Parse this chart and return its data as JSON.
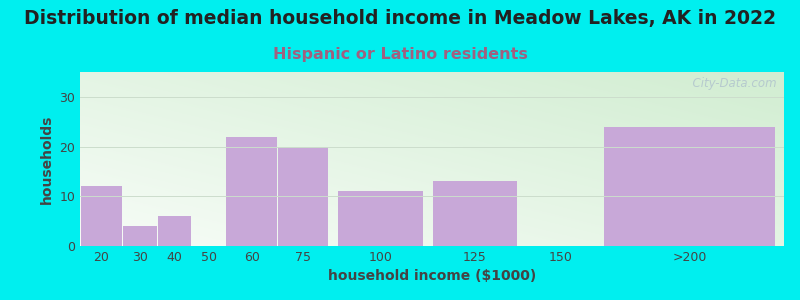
{
  "title": "Distribution of median household income in Meadow Lakes, AK in 2022",
  "subtitle": "Hispanic or Latino residents",
  "xlabel": "household income ($1000)",
  "ylabel": "households",
  "bar_labels": [
    "20",
    "30",
    "40",
    "50",
    "60",
    "75",
    "100",
    "125",
    "150",
    ">200"
  ],
  "bar_heights": [
    12,
    4,
    6,
    0,
    22,
    20,
    11,
    13,
    0,
    24
  ],
  "bar_left_edges": [
    10,
    22.5,
    32.5,
    42.5,
    52.5,
    67.5,
    85,
    112.5,
    137.5,
    162.5
  ],
  "bar_widths": [
    12.5,
    10,
    10,
    10,
    15,
    15,
    25,
    25,
    25,
    50
  ],
  "bar_color": "#c8a8d8",
  "bar_edgecolor": "#c8a8d8",
  "ylim": [
    0,
    35
  ],
  "yticks": [
    0,
    10,
    20,
    30
  ],
  "xlim": [
    10,
    215
  ],
  "bg_outer": "#00efef",
  "bg_inner_top": "#f5faf5",
  "bg_inner_bottom": "#d8efd8",
  "watermark": "  City-Data.com",
  "title_fontsize": 13.5,
  "title_color": "#222222",
  "subtitle_fontsize": 11.5,
  "subtitle_color": "#a06080",
  "axis_label_fontsize": 10,
  "axis_label_color": "#444444",
  "tick_fontsize": 9,
  "tick_color": "#444444"
}
